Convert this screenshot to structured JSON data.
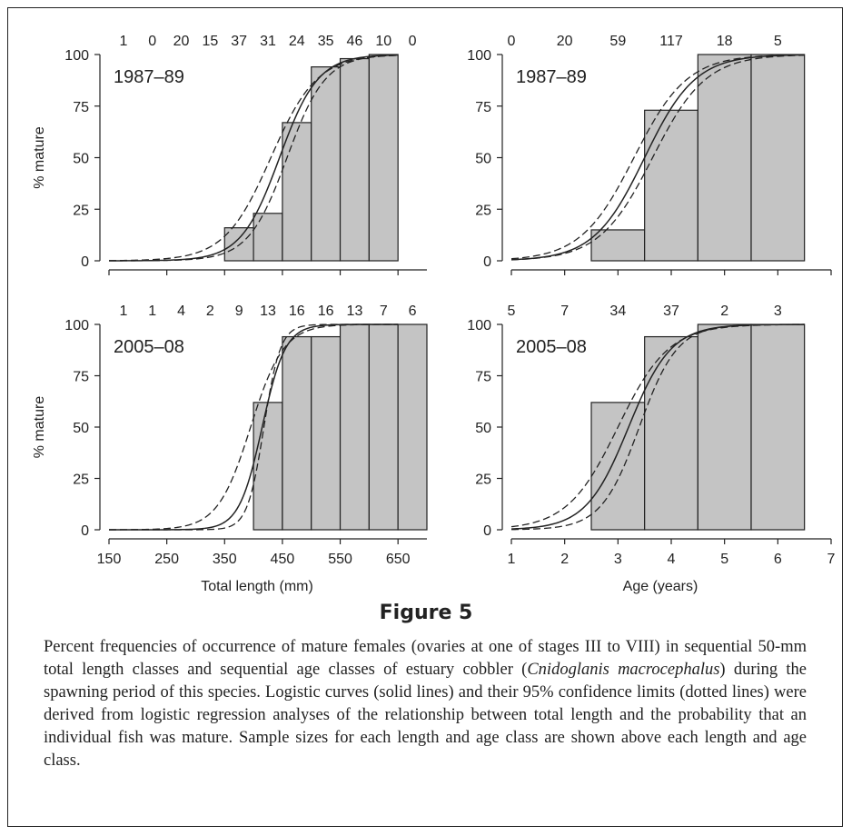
{
  "figure": {
    "title": "Figure 5",
    "caption_before_species": "Percent frequencies of occurrence of mature females (ovaries at one of stages III to VIII) in sequential 50-mm total length classes and sequential age classes of estuary cobbler (",
    "caption_species": "Cnidoglanis macrocephalus",
    "caption_after_species": ") during the spawning period of this species. Logistic curves (solid lines) and their 95% confidence limits (dotted lines) were derived from logistic regression analyses of the relationship between total length and the probability that an individual fish was mature. Sample sizes for each length and age class are shown above each length and age class."
  },
  "chart_data": [
    {
      "type": "bar",
      "period": "1987–89",
      "ylabel": "% mature",
      "xlabel": "",
      "xlim": [
        150,
        700
      ],
      "ylim": [
        0,
        100
      ],
      "xticks": [
        150,
        250,
        350,
        450,
        550,
        650
      ],
      "yticks": [
        0,
        25,
        50,
        75,
        100
      ],
      "bin_width": 50,
      "bins": [
        {
          "start": 150,
          "value": 0,
          "n": "1"
        },
        {
          "start": 200,
          "value": 0,
          "n": "0"
        },
        {
          "start": 250,
          "value": 0,
          "n": "20"
        },
        {
          "start": 300,
          "value": 0,
          "n": "15"
        },
        {
          "start": 350,
          "value": 16,
          "n": "37"
        },
        {
          "start": 400,
          "value": 23,
          "n": "31"
        },
        {
          "start": 450,
          "value": 67,
          "n": "24"
        },
        {
          "start": 500,
          "value": 94,
          "n": "35"
        },
        {
          "start": 550,
          "value": 98,
          "n": "46"
        },
        {
          "start": 600,
          "value": 100,
          "n": "10"
        },
        {
          "start": 650,
          "value": 0,
          "n": "0"
        }
      ],
      "curve": {
        "x50": 445,
        "k": 0.03,
        "x_end": 650
      },
      "ci_lower": {
        "x50": 458,
        "k": 0.03
      },
      "ci_upper": {
        "x50": 430,
        "k": 0.025
      }
    },
    {
      "type": "bar",
      "period": "1987–89",
      "ylabel": "",
      "xlabel": "",
      "xlim": [
        1,
        7
      ],
      "ylim": [
        0,
        100
      ],
      "xticks": [
        1,
        2,
        3,
        4,
        5,
        6,
        7
      ],
      "yticks": [
        0,
        25,
        50,
        75,
        100
      ],
      "bin_width": 1,
      "bins": [
        {
          "start": 0.5,
          "value": 0,
          "n": "0"
        },
        {
          "start": 1.5,
          "value": 0,
          "n": "20"
        },
        {
          "start": 2.5,
          "value": 15,
          "n": "59"
        },
        {
          "start": 3.5,
          "value": 73,
          "n": "117"
        },
        {
          "start": 4.5,
          "value": 100,
          "n": "18"
        },
        {
          "start": 5.5,
          "value": 100,
          "n": "5"
        }
      ],
      "curve": {
        "x50": 3.5,
        "k": 2.1,
        "x_start": 1,
        "x_end": 6.5
      },
      "ci_lower": {
        "x50": 3.65,
        "k": 2.0
      },
      "ci_upper": {
        "x50": 3.3,
        "k": 2.0
      }
    },
    {
      "type": "bar",
      "period": "2005–08",
      "ylabel": "% mature",
      "xlabel": "Total length (mm)",
      "xlim": [
        150,
        700
      ],
      "ylim": [
        0,
        100
      ],
      "xticks": [
        150,
        250,
        350,
        450,
        550,
        650
      ],
      "yticks": [
        0,
        25,
        50,
        75,
        100
      ],
      "bin_width": 50,
      "bins": [
        {
          "start": 150,
          "value": 0,
          "n": "1"
        },
        {
          "start": 200,
          "value": 0,
          "n": "1"
        },
        {
          "start": 250,
          "value": 0,
          "n": "4"
        },
        {
          "start": 300,
          "value": 0,
          "n": "2"
        },
        {
          "start": 350,
          "value": 0,
          "n": "9"
        },
        {
          "start": 400,
          "value": 62,
          "n": "13"
        },
        {
          "start": 450,
          "value": 94,
          "n": "16"
        },
        {
          "start": 500,
          "value": 94,
          "n": "16"
        },
        {
          "start": 550,
          "value": 100,
          "n": "13"
        },
        {
          "start": 600,
          "value": 100,
          "n": "7"
        },
        {
          "start": 650,
          "value": 100,
          "n": "6"
        }
      ],
      "curve": {
        "x50": 415,
        "k": 0.05,
        "x_end": 650
      },
      "ci_lower": {
        "x50": 418,
        "k": 0.07
      },
      "ci_upper": {
        "x50": 395,
        "k": 0.035
      }
    },
    {
      "type": "bar",
      "period": "2005–08",
      "ylabel": "",
      "xlabel": "Age (years)",
      "xlim": [
        1,
        7
      ],
      "ylim": [
        0,
        100
      ],
      "xticks": [
        1,
        2,
        3,
        4,
        5,
        6,
        7
      ],
      "yticks": [
        0,
        25,
        50,
        75,
        100
      ],
      "bin_width": 1,
      "bins": [
        {
          "start": 0.5,
          "value": 0,
          "n": "5"
        },
        {
          "start": 1.5,
          "value": 0,
          "n": "7"
        },
        {
          "start": 2.5,
          "value": 62,
          "n": "34"
        },
        {
          "start": 3.5,
          "value": 94,
          "n": "37"
        },
        {
          "start": 4.5,
          "value": 100,
          "n": "2"
        },
        {
          "start": 5.5,
          "value": 100,
          "n": "3"
        }
      ],
      "curve": {
        "x50": 3.2,
        "k": 2.5,
        "x_start": 1,
        "x_end": 6.5
      },
      "ci_lower": {
        "x50": 3.4,
        "k": 2.8
      },
      "ci_upper": {
        "x50": 3.0,
        "k": 2.1
      }
    }
  ]
}
